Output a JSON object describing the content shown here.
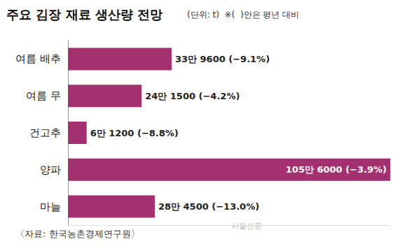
{
  "chart_data": {
    "type": "bar",
    "orientation": "horizontal",
    "title": "주요 김장 재료 생산량 전망",
    "subtitle": "(단위: t)  ※(  )안은 평년 대비",
    "categories": [
      "여름 배추",
      "여름 무",
      "건고추",
      "양파",
      "마늘"
    ],
    "values": [
      339600,
      241500,
      61200,
      1056000,
      284500
    ],
    "value_labels": [
      "33만 9600 (−9.1%)",
      "24만 1500 (−4.2%)",
      "6만 1200 (−8.8%)",
      "105만 6000 (−3.9%)",
      "28만 4500 (−13.0%)"
    ],
    "color": "#a3306f",
    "xlim": [
      0,
      1056000
    ],
    "data_labels": true,
    "tick_labels": "y",
    "grid": false,
    "annotations": [
      "〈자료: 한국농촌경제연구원〉",
      "서울신문"
    ]
  }
}
